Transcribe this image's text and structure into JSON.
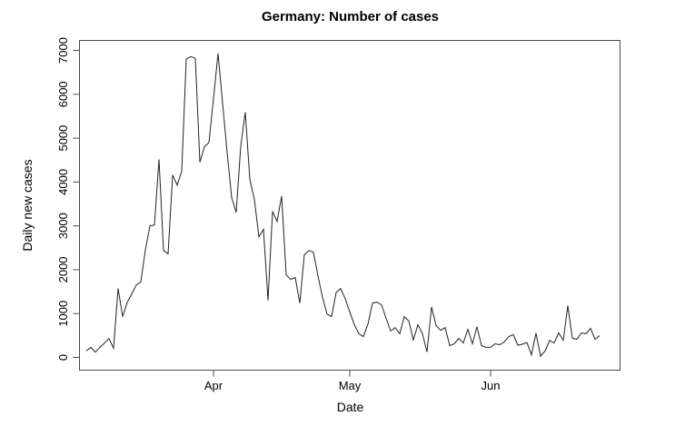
{
  "chart_data": {
    "type": "line",
    "title": "Germany: Number of cases",
    "xlabel": "Date",
    "ylabel": "Daily new cases",
    "series_name": "daily-new-cases",
    "frequency": "daily",
    "x_tick_labels": [
      "Apr",
      "May",
      "Jun"
    ],
    "x_tick_indices": [
      28,
      58,
      89
    ],
    "y_ticks": [
      0,
      1000,
      2000,
      3000,
      4000,
      5000,
      6000,
      7000
    ],
    "ylim": [
      0,
      7000
    ],
    "grid": false,
    "legend": "none",
    "values": [
      150,
      230,
      120,
      230,
      330,
      430,
      210,
      1570,
      930,
      1250,
      1450,
      1650,
      1720,
      2450,
      3000,
      3020,
      4515,
      2440,
      2360,
      4160,
      3930,
      4240,
      6800,
      6860,
      6820,
      4450,
      4800,
      4900,
      5900,
      6930,
      5800,
      4680,
      3640,
      3310,
      4820,
      5590,
      4060,
      3600,
      2750,
      2920,
      1300,
      3330,
      3100,
      3680,
      1880,
      1780,
      1820,
      1240,
      2340,
      2440,
      2400,
      1860,
      1370,
      990,
      930,
      1480,
      1570,
      1340,
      1040,
      750,
      540,
      475,
      760,
      1240,
      1260,
      1200,
      890,
      600,
      680,
      540,
      930,
      830,
      400,
      745,
      540,
      125,
      1150,
      725,
      620,
      680,
      270,
      310,
      435,
      330,
      640,
      310,
      700,
      270,
      230,
      230,
      310,
      290,
      350,
      476,
      520,
      280,
      300,
      340,
      60,
      550,
      30,
      150,
      390,
      330,
      560,
      390,
      1180,
      440,
      414,
      560,
      540,
      660,
      414,
      497
    ]
  },
  "figure": {
    "background": "#ffffff",
    "line_color": "#222222",
    "axis_color": "#4a4a4a",
    "text_color": "#000000"
  }
}
